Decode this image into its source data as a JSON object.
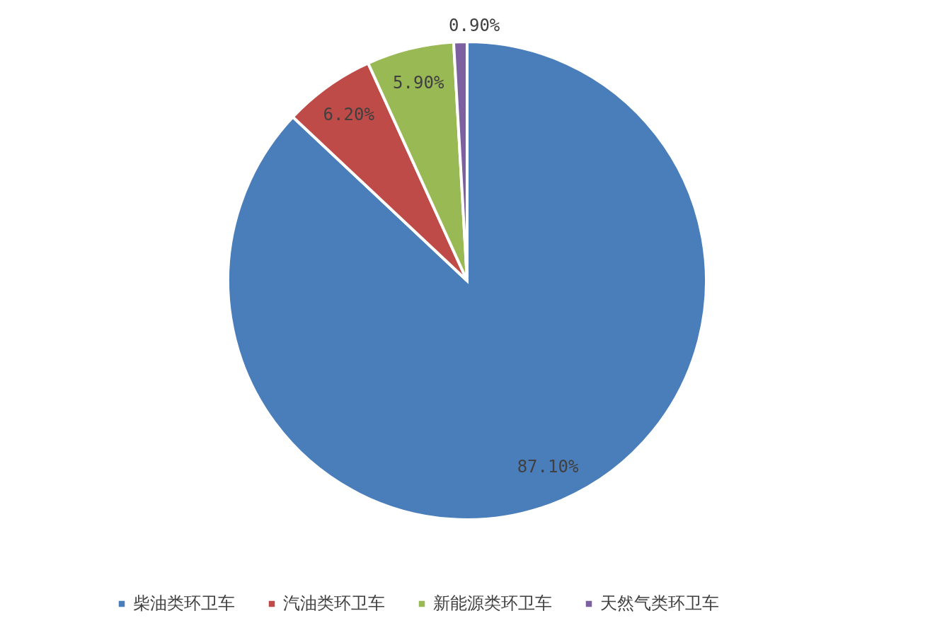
{
  "chart_data": {
    "type": "pie",
    "categories": [
      "柴油类环卫车",
      "汽油类环卫车",
      "新能源类环卫车",
      "天然气类环卫车"
    ],
    "values": [
      87.1,
      6.2,
      5.9,
      0.9
    ],
    "colors": [
      "#4a7ebb",
      "#be4b48",
      "#98b954",
      "#7d60a0"
    ],
    "value_labels": [
      "87.10%",
      "6.20%",
      "5.90%",
      "0.90%"
    ],
    "legend": "bottom"
  }
}
